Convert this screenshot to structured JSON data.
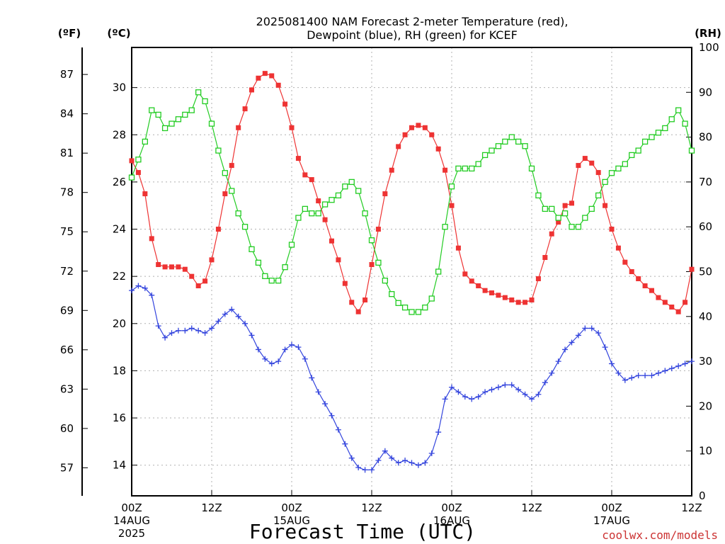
{
  "chart_data": {
    "type": "line",
    "title_line1": "2025081400 NAM Forecast 2-meter Temperature (red),",
    "title_line2": "Dewpoint (blue), RH (green) for KCEF",
    "xlabel": "Forecast Time (UTC)",
    "credit": "coolwx.com/models",
    "units": {
      "fahrenheit": "(ºF)",
      "celsius": "(ºC)",
      "rh": "(RH)"
    },
    "x_range_hours": [
      0,
      84
    ],
    "x_step_hours": 1,
    "x_ticks": [
      {
        "hour": 0,
        "l1": "00Z",
        "l2": "14AUG",
        "l3": "2025"
      },
      {
        "hour": 12,
        "l1": "12Z",
        "l2": "",
        "l3": ""
      },
      {
        "hour": 24,
        "l1": "00Z",
        "l2": "15AUG",
        "l3": ""
      },
      {
        "hour": 36,
        "l1": "12Z",
        "l2": "",
        "l3": ""
      },
      {
        "hour": 48,
        "l1": "00Z",
        "l2": "16AUG",
        "l3": ""
      },
      {
        "hour": 60,
        "l1": "12Z",
        "l2": "",
        "l3": ""
      },
      {
        "hour": 72,
        "l1": "00Z",
        "l2": "17AUG",
        "l3": ""
      },
      {
        "hour": 84,
        "l1": "12Z",
        "l2": "",
        "l3": ""
      }
    ],
    "celsius_range": [
      12.7,
      31.7
    ],
    "celsius_ticks": [
      "14",
      "16",
      "18",
      "20",
      "22",
      "24",
      "26",
      "28",
      "30"
    ],
    "fahrenheit_ticks": [
      "57",
      "60",
      "63",
      "66",
      "69",
      "72",
      "75",
      "78",
      "81",
      "84",
      "87"
    ],
    "rh_range": [
      0,
      100
    ],
    "rh_ticks": [
      "0",
      "10",
      "20",
      "30",
      "40",
      "50",
      "60",
      "70",
      "80",
      "90",
      "100"
    ],
    "grid": true,
    "series": [
      {
        "key": "temperature",
        "color": "#ee3333",
        "marker": "filled-square",
        "axis": "celsius",
        "values": [
          26.9,
          26.4,
          25.5,
          23.6,
          22.5,
          22.4,
          22.4,
          22.4,
          22.3,
          22.0,
          21.6,
          21.8,
          22.7,
          24.0,
          25.5,
          26.7,
          28.3,
          29.1,
          29.9,
          30.4,
          30.6,
          30.5,
          30.1,
          29.3,
          28.3,
          27.0,
          26.3,
          26.1,
          25.2,
          24.4,
          23.5,
          22.7,
          21.7,
          20.9,
          20.5,
          21.0,
          22.5,
          24.0,
          25.5,
          26.5,
          27.5,
          28.0,
          28.3,
          28.4,
          28.3,
          28.0,
          27.4,
          26.5,
          25.0,
          23.2,
          22.1,
          21.8,
          21.6,
          21.4,
          21.3,
          21.2,
          21.1,
          21.0,
          20.9,
          20.9,
          21.0,
          21.9,
          22.8,
          23.8,
          24.3,
          25.0,
          25.1,
          26.7,
          27.0,
          26.8,
          26.4,
          25.0,
          24.0,
          23.2,
          22.6,
          22.2,
          21.9,
          21.6,
          21.4,
          21.1,
          20.9,
          20.7,
          20.5,
          20.9,
          22.3
        ]
      },
      {
        "key": "dewpoint",
        "color": "#3344dd",
        "marker": "plus",
        "axis": "celsius",
        "values": [
          21.4,
          21.6,
          21.5,
          21.2,
          19.9,
          19.4,
          19.6,
          19.7,
          19.7,
          19.8,
          19.7,
          19.6,
          19.8,
          20.1,
          20.4,
          20.6,
          20.3,
          20.0,
          19.5,
          18.9,
          18.5,
          18.3,
          18.4,
          18.9,
          19.1,
          19.0,
          18.5,
          17.7,
          17.1,
          16.6,
          16.1,
          15.5,
          14.9,
          14.3,
          13.9,
          13.8,
          13.8,
          14.2,
          14.6,
          14.3,
          14.1,
          14.2,
          14.1,
          14.0,
          14.1,
          14.5,
          15.4,
          16.8,
          17.3,
          17.1,
          16.9,
          16.8,
          16.9,
          17.1,
          17.2,
          17.3,
          17.4,
          17.4,
          17.2,
          17.0,
          16.8,
          17.0,
          17.5,
          17.9,
          18.4,
          18.9,
          19.2,
          19.5,
          19.8,
          19.8,
          19.6,
          19.0,
          18.3,
          17.9,
          17.6,
          17.7,
          17.8,
          17.8,
          17.8,
          17.9,
          18.0,
          18.1,
          18.2,
          18.3,
          18.4
        ]
      },
      {
        "key": "rh",
        "color": "#22cc22",
        "marker": "open-square",
        "axis": "rh",
        "values": [
          71,
          75,
          79,
          86,
          85,
          82,
          83,
          84,
          85,
          86,
          90,
          88,
          83,
          77,
          72,
          68,
          63,
          60,
          55,
          52,
          49,
          48,
          48,
          51,
          56,
          62,
          64,
          63,
          63,
          65,
          66,
          67,
          69,
          70,
          68,
          63,
          57,
          52,
          48,
          45,
          43,
          42,
          41,
          41,
          42,
          44,
          50,
          60,
          69,
          73,
          73,
          73,
          74,
          76,
          77,
          78,
          79,
          80,
          79,
          78,
          73,
          67,
          64,
          64,
          62,
          63,
          60,
          60,
          62,
          64,
          67,
          70,
          72,
          73,
          74,
          76,
          77,
          79,
          80,
          81,
          82,
          84,
          86,
          83,
          77
        ]
      }
    ]
  }
}
